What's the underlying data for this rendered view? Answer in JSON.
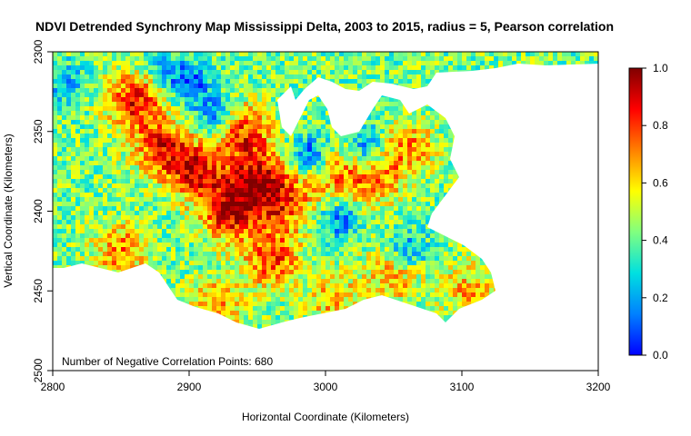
{
  "chart_data": {
    "type": "heatmap",
    "title": "NDVI Detrended Synchrony Map Mississippi Delta, 2003 to 2015, radius = 5, Pearson correlation",
    "xlabel": "Horizontal Coordinate (Kilometers)",
    "ylabel": "Vertical Coordinate (Kilometers)",
    "xlim": [
      2800,
      3200
    ],
    "ylim": [
      2300,
      2500
    ],
    "y_inverted": true,
    "x_ticks": [
      2800,
      2900,
      3000,
      3100,
      3200
    ],
    "y_ticks": [
      2300,
      2350,
      2400,
      2450,
      2500
    ],
    "annotation": "Number of Negative Correlation Points: 680",
    "colorbar": {
      "range": [
        0.0,
        1.0
      ],
      "ticks": [
        "0.0",
        "0.2",
        "0.4",
        "0.6",
        "0.8",
        "1.0"
      ],
      "colors": [
        "#0000ff",
        "#0080ff",
        "#00e0e0",
        "#80ff80",
        "#ffff00",
        "#ff8000",
        "#ff0000",
        "#800000"
      ]
    },
    "hotspots": [
      {
        "x": 2860,
        "y": 2330,
        "value": 0.85
      },
      {
        "x": 2880,
        "y": 2360,
        "value": 0.8
      },
      {
        "x": 2905,
        "y": 2375,
        "value": 0.85
      },
      {
        "x": 2930,
        "y": 2400,
        "value": 0.9
      },
      {
        "x": 2950,
        "y": 2380,
        "value": 0.88
      },
      {
        "x": 2940,
        "y": 2350,
        "value": 0.82
      },
      {
        "x": 2970,
        "y": 2395,
        "value": 0.75
      },
      {
        "x": 2960,
        "y": 2430,
        "value": 0.8
      },
      {
        "x": 3005,
        "y": 2375,
        "value": 0.7
      },
      {
        "x": 3035,
        "y": 2380,
        "value": 0.72
      },
      {
        "x": 3060,
        "y": 2360,
        "value": 0.7
      },
      {
        "x": 2850,
        "y": 2425,
        "value": 0.72
      },
      {
        "x": 2920,
        "y": 2460,
        "value": 0.7
      },
      {
        "x": 3005,
        "y": 2455,
        "value": 0.65
      },
      {
        "x": 3050,
        "y": 2440,
        "value": 0.68
      },
      {
        "x": 3105,
        "y": 2450,
        "value": 0.65
      }
    ],
    "coldspots": [
      {
        "x": 2900,
        "y": 2320,
        "value": 0.1
      },
      {
        "x": 2920,
        "y": 2340,
        "value": 0.12
      },
      {
        "x": 2990,
        "y": 2365,
        "value": 0.05
      },
      {
        "x": 3030,
        "y": 2360,
        "value": 0.1
      },
      {
        "x": 2810,
        "y": 2320,
        "value": 0.2
      },
      {
        "x": 2880,
        "y": 2310,
        "value": 0.25
      },
      {
        "x": 3010,
        "y": 2405,
        "value": 0.15
      },
      {
        "x": 3060,
        "y": 2425,
        "value": 0.15
      }
    ]
  }
}
